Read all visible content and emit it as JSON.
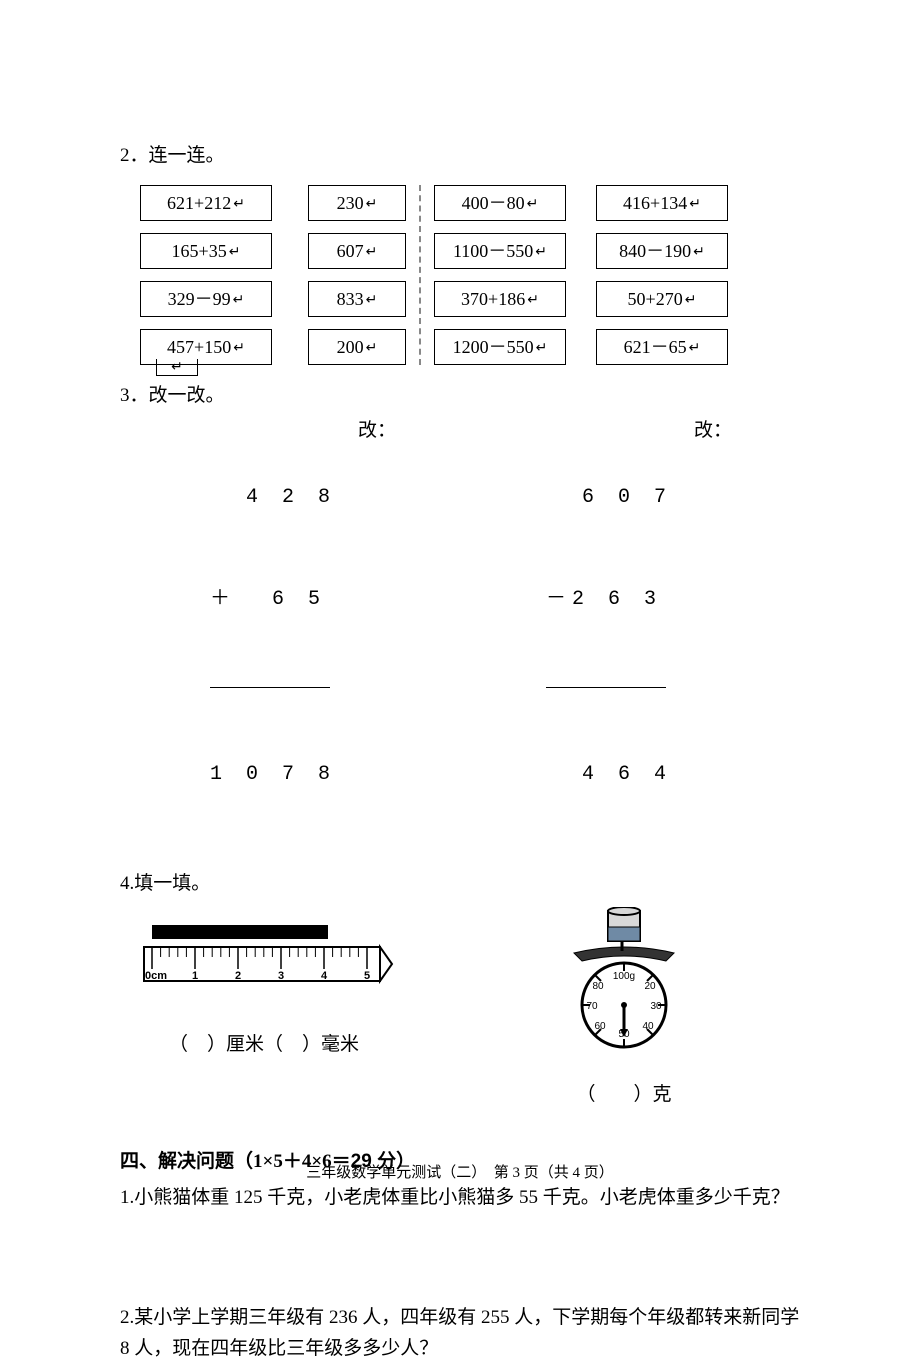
{
  "ret": "↵",
  "q2": {
    "label": "2．连一连。",
    "left_exp": [
      "621+212",
      "165+35",
      "329－99",
      "457+150"
    ],
    "left_ans": [
      "230",
      "607",
      "833",
      "200"
    ],
    "right_exp": [
      "400－80",
      "1100－550",
      "370+186",
      "1200－550"
    ],
    "right_ans": [
      "416+134",
      "840－190",
      "50+270",
      "621－65"
    ]
  },
  "q3": {
    "label": "3．改一改。",
    "change": "改：",
    "a": {
      "top": "  4 2 8",
      "mid": "＋  6 5",
      "res": "1 0 7 8"
    },
    "b": {
      "top": "  6 0 7",
      "mid": "－2 6 3",
      "res": "  4 6 4"
    }
  },
  "q4": {
    "label": "4.填一填。",
    "ruler_caption": "（　）厘米（　）毫米",
    "scale_caption": "（　　）克",
    "ruler": {
      "ticks": [
        "0cm",
        "1",
        "2",
        "3",
        "4",
        "5"
      ],
      "bar_end": 4.1
    },
    "scale": {
      "labels": {
        "100": "100g",
        "20": "20",
        "30": "30",
        "40": "40",
        "50": "50",
        "60": "60",
        "70": "70",
        "80": "80"
      },
      "pointer_deg": 180
    }
  },
  "section4": {
    "head_bold": "四、解决问题",
    "head_rest": "（1×5＋4×6＝",
    "head_num": "29 分",
    "head_close": "）",
    "p1": "1.小熊猫体重 125 千克，小老虎体重比小熊猫多 55 千克。小老虎体重多少千克？",
    "p2": "2.某小学上学期三年级有 236 人，四年级有 255 人，下学期每个年级都转来新同学 8 人，现在四年级比三年级多多少人？"
  },
  "footer": "三年级数学单元测试（二）　第 3 页（共 4 页）"
}
